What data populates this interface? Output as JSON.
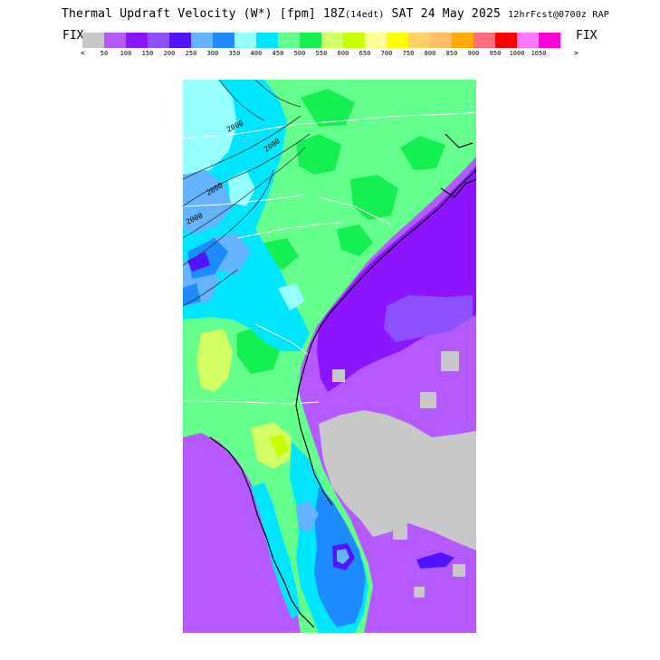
{
  "header": {
    "title_main": "Thermal Updraft Velocity (W*) [fpm] 18Z",
    "title_local": "(14edt)",
    "title_date": " SAT 24 May 2025 ",
    "title_fcst": "12hrFcst@0700z RAP",
    "fix_left": "FIX",
    "fix_right": "FIX"
  },
  "legend": {
    "left_arrow": "<",
    "right_arrow": ">",
    "colors": [
      "#c8c8c8",
      "#b45aff",
      "#8c14ff",
      "#8c50ff",
      "#5014ff",
      "#64b4ff",
      "#1e8cff",
      "#96ffff",
      "#00e6ff",
      "#64ff8c",
      "#14f050",
      "#d2ff64",
      "#c8ff00",
      "#ffff96",
      "#ffff00",
      "#ffd264",
      "#ffbe64",
      "#ffaa00",
      "#ff6e78",
      "#ff0000",
      "#ff78ff",
      "#ff00dc"
    ],
    "ticks": [
      "50",
      "100",
      "150",
      "200",
      "250",
      "300",
      "350",
      "400",
      "450",
      "500",
      "550",
      "600",
      "650",
      "700",
      "750",
      "800",
      "850",
      "900",
      "950",
      "1000",
      "1050"
    ]
  },
  "map": {
    "contour_labels": [
      "2000",
      "2000",
      "2000",
      "2000"
    ],
    "colors": {
      "gray": "#c8c8c8",
      "lavender": "#b45aff",
      "violet": "#8c14ff",
      "purple": "#8c50ff",
      "indigo": "#5014ff",
      "lightblue": "#64b4ff",
      "blue": "#1e8cff",
      "paleaqua": "#96ffff",
      "cyan": "#00e6ff",
      "lightgreen": "#64ff8c",
      "green": "#14f050",
      "yellowgreen": "#d2ff64",
      "chartreuse": "#c8ff00"
    }
  }
}
